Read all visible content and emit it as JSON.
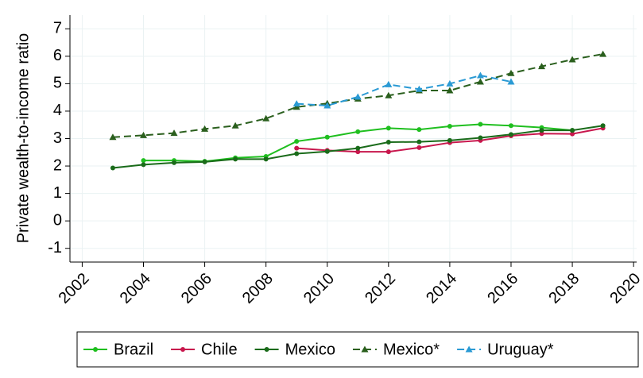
{
  "chart_data": {
    "type": "line",
    "y_label": "Private wealth-to-income ratio",
    "x": [
      2003,
      2004,
      2005,
      2006,
      2007,
      2008,
      2009,
      2010,
      2011,
      2012,
      2013,
      2014,
      2015,
      2016,
      2017,
      2018,
      2019
    ],
    "series": [
      {
        "name": "Brazil",
        "color": "#1fbf1f",
        "dash": false,
        "marker": "circle",
        "values": [
          null,
          2.2,
          2.2,
          2.17,
          2.3,
          2.35,
          2.9,
          3.05,
          3.25,
          3.38,
          3.33,
          3.45,
          3.52,
          3.47,
          3.4,
          3.3,
          null
        ]
      },
      {
        "name": "Chile",
        "color": "#c8174d",
        "dash": false,
        "marker": "circle",
        "values": [
          null,
          null,
          null,
          null,
          null,
          null,
          2.65,
          2.57,
          2.52,
          2.52,
          2.67,
          2.85,
          2.93,
          3.1,
          3.18,
          3.17,
          3.38
        ]
      },
      {
        "name": "Mexico",
        "color": "#1a6b1a",
        "dash": false,
        "marker": "circle",
        "values": [
          1.93,
          2.05,
          2.12,
          2.15,
          2.25,
          2.25,
          2.45,
          2.53,
          2.65,
          2.87,
          2.88,
          2.93,
          3.03,
          3.15,
          3.3,
          3.3,
          3.47
        ]
      },
      {
        "name": "Mexico*",
        "color": "#2a5f1d",
        "dash": true,
        "marker": "triangle",
        "values": [
          3.05,
          3.12,
          3.2,
          3.35,
          3.47,
          3.73,
          4.15,
          4.28,
          4.45,
          4.57,
          4.75,
          4.75,
          5.07,
          5.38,
          5.63,
          5.88,
          6.08
        ]
      },
      {
        "name": "Uruguay*",
        "color": "#2a9ad4",
        "dash": true,
        "marker": "triangle",
        "values": [
          null,
          null,
          null,
          null,
          null,
          null,
          4.27,
          4.2,
          4.52,
          4.97,
          4.8,
          5.0,
          5.3,
          5.07,
          null,
          null,
          null
        ]
      }
    ],
    "xlim": [
      2001.6,
      2020.1
    ],
    "xticks": [
      2002,
      2004,
      2006,
      2008,
      2010,
      2012,
      2014,
      2016,
      2018,
      2020
    ],
    "ylim": [
      -1.5,
      7.5
    ],
    "yticks": [
      -1,
      0,
      1,
      2,
      3,
      4,
      5,
      6,
      7
    ],
    "grid": true,
    "legend": "bottom"
  }
}
